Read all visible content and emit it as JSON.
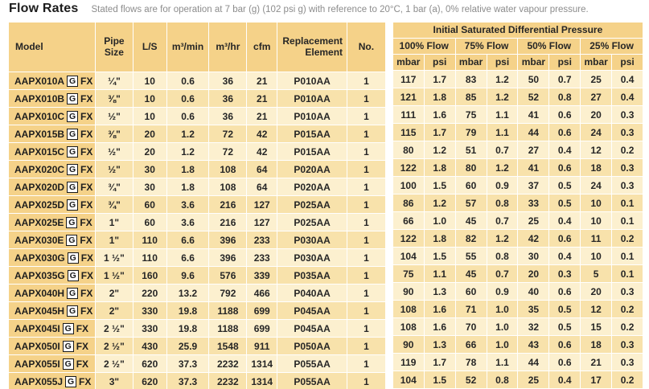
{
  "page": {
    "title": "Flow Rates",
    "subtitle": "Stated flows are for operation at 7 bar (g) (102 psi g) with reference to 20°C, 1 bar (a), 0% relative water vapour pressure."
  },
  "colors": {
    "header_bg": "#f5d289",
    "row_light_bg": "#fcf0cf",
    "row_dark_bg": "#f8e2ab",
    "grid_line": "#ffffff",
    "badge_border": "#1a1a1a",
    "text": "#262626",
    "subtitle_text": "#8c8c8c"
  },
  "table": {
    "columns": {
      "model": "Model",
      "pipe": "Pipe Size",
      "ls": "L/S",
      "m3min": "m³/min",
      "m3hr": "m³/hr",
      "cfm": "cfm",
      "element": "Replacement Element",
      "no": "No."
    },
    "pressure_header": "Initial Saturated Differential Pressure",
    "flow_groups": [
      "100% Flow",
      "75% Flow",
      "50% Flow",
      "25% Flow"
    ],
    "units": [
      "mbar",
      "psi"
    ],
    "rows": [
      {
        "model": "AAPX010A",
        "badge": "G",
        "suffix": "FX",
        "pipe": "¼\"",
        "ls": "10",
        "m3min": "0.6",
        "m3hr": "36",
        "cfm": "21",
        "element": "P010AA",
        "no": "1",
        "p": [
          "117",
          "1.7",
          "83",
          "1.2",
          "50",
          "0.7",
          "25",
          "0.4"
        ]
      },
      {
        "model": "AAPX010B",
        "badge": "G",
        "suffix": "FX",
        "pipe": "⅜\"",
        "ls": "10",
        "m3min": "0.6",
        "m3hr": "36",
        "cfm": "21",
        "element": "P010AA",
        "no": "1",
        "p": [
          "121",
          "1.8",
          "85",
          "1.2",
          "52",
          "0.8",
          "27",
          "0.4"
        ]
      },
      {
        "model": "AAPX010C",
        "badge": "G",
        "suffix": "FX",
        "pipe": "½\"",
        "ls": "10",
        "m3min": "0.6",
        "m3hr": "36",
        "cfm": "21",
        "element": "P010AA",
        "no": "1",
        "p": [
          "111",
          "1.6",
          "75",
          "1.1",
          "41",
          "0.6",
          "20",
          "0.3"
        ]
      },
      {
        "model": "AAPX015B",
        "badge": "G",
        "suffix": "FX",
        "pipe": "⅜\"",
        "ls": "20",
        "m3min": "1.2",
        "m3hr": "72",
        "cfm": "42",
        "element": "P015AA",
        "no": "1",
        "p": [
          "115",
          "1.7",
          "79",
          "1.1",
          "44",
          "0.6",
          "24",
          "0.3"
        ]
      },
      {
        "model": "AAPX015C",
        "badge": "G",
        "suffix": "FX",
        "pipe": "½\"",
        "ls": "20",
        "m3min": "1.2",
        "m3hr": "72",
        "cfm": "42",
        "element": "P015AA",
        "no": "1",
        "p": [
          "80",
          "1.2",
          "51",
          "0.7",
          "27",
          "0.4",
          "12",
          "0.2"
        ]
      },
      {
        "model": "AAPX020C",
        "badge": "G",
        "suffix": "FX",
        "pipe": "½\"",
        "ls": "30",
        "m3min": "1.8",
        "m3hr": "108",
        "cfm": "64",
        "element": "P020AA",
        "no": "1",
        "p": [
          "122",
          "1.8",
          "80",
          "1.2",
          "41",
          "0.6",
          "18",
          "0.3"
        ]
      },
      {
        "model": "AAPX020D",
        "badge": "G",
        "suffix": "FX",
        "pipe": "¾\"",
        "ls": "30",
        "m3min": "1.8",
        "m3hr": "108",
        "cfm": "64",
        "element": "P020AA",
        "no": "1",
        "p": [
          "100",
          "1.5",
          "60",
          "0.9",
          "37",
          "0.5",
          "24",
          "0.3"
        ]
      },
      {
        "model": "AAPX025D",
        "badge": "G",
        "suffix": "FX",
        "pipe": "¾\"",
        "ls": "60",
        "m3min": "3.6",
        "m3hr": "216",
        "cfm": "127",
        "element": "P025AA",
        "no": "1",
        "p": [
          "86",
          "1.2",
          "57",
          "0.8",
          "33",
          "0.5",
          "10",
          "0.1"
        ]
      },
      {
        "model": "AAPX025E",
        "badge": "G",
        "suffix": "FX",
        "pipe": "1\"",
        "ls": "60",
        "m3min": "3.6",
        "m3hr": "216",
        "cfm": "127",
        "element": "P025AA",
        "no": "1",
        "p": [
          "66",
          "1.0",
          "45",
          "0.7",
          "25",
          "0.4",
          "10",
          "0.1"
        ]
      },
      {
        "model": "AAPX030E",
        "badge": "G",
        "suffix": "FX",
        "pipe": "1\"",
        "ls": "110",
        "m3min": "6.6",
        "m3hr": "396",
        "cfm": "233",
        "element": "P030AA",
        "no": "1",
        "p": [
          "122",
          "1.8",
          "82",
          "1.2",
          "42",
          "0.6",
          "11",
          "0.2"
        ]
      },
      {
        "model": "AAPX030G",
        "badge": "G",
        "suffix": "FX",
        "pipe": "1 ½\"",
        "ls": "110",
        "m3min": "6.6",
        "m3hr": "396",
        "cfm": "233",
        "element": "P030AA",
        "no": "1",
        "p": [
          "104",
          "1.5",
          "55",
          "0.8",
          "30",
          "0.4",
          "10",
          "0.1"
        ]
      },
      {
        "model": "AAPX035G",
        "badge": "G",
        "suffix": "FX",
        "pipe": "1 ½\"",
        "ls": "160",
        "m3min": "9.6",
        "m3hr": "576",
        "cfm": "339",
        "element": "P035AA",
        "no": "1",
        "p": [
          "75",
          "1.1",
          "45",
          "0.7",
          "20",
          "0.3",
          "5",
          "0.1"
        ]
      },
      {
        "model": "AAPX040H",
        "badge": "G",
        "suffix": "FX",
        "pipe": "2\"",
        "ls": "220",
        "m3min": "13.2",
        "m3hr": "792",
        "cfm": "466",
        "element": "P040AA",
        "no": "1",
        "p": [
          "90",
          "1.3",
          "60",
          "0.9",
          "40",
          "0.6",
          "20",
          "0.3"
        ]
      },
      {
        "model": "AAPX045H",
        "badge": "G",
        "suffix": "FX",
        "pipe": "2\"",
        "ls": "330",
        "m3min": "19.8",
        "m3hr": "1188",
        "cfm": "699",
        "element": "P045AA",
        "no": "1",
        "p": [
          "108",
          "1.6",
          "71",
          "1.0",
          "35",
          "0.5",
          "12",
          "0.2"
        ]
      },
      {
        "model": "AAPX045I",
        "badge": "G",
        "suffix": "FX",
        "pipe": "2 ½\"",
        "ls": "330",
        "m3min": "19.8",
        "m3hr": "1188",
        "cfm": "699",
        "element": "P045AA",
        "no": "1",
        "p": [
          "108",
          "1.6",
          "70",
          "1.0",
          "32",
          "0.5",
          "15",
          "0.2"
        ]
      },
      {
        "model": "AAPX050I",
        "badge": "G",
        "suffix": "FX",
        "pipe": "2 ½\"",
        "ls": "430",
        "m3min": "25.9",
        "m3hr": "1548",
        "cfm": "911",
        "element": "P050AA",
        "no": "1",
        "p": [
          "90",
          "1.3",
          "66",
          "1.0",
          "43",
          "0.6",
          "18",
          "0.3"
        ]
      },
      {
        "model": "AAPX055I",
        "badge": "G",
        "suffix": "FX",
        "pipe": "2 ½\"",
        "ls": "620",
        "m3min": "37.3",
        "m3hr": "2232",
        "cfm": "1314",
        "element": "P055AA",
        "no": "1",
        "p": [
          "119",
          "1.7",
          "78",
          "1.1",
          "44",
          "0.6",
          "21",
          "0.3"
        ]
      },
      {
        "model": "AAPX055J",
        "badge": "G",
        "suffix": "FX",
        "pipe": "3\"",
        "ls": "620",
        "m3min": "37.3",
        "m3hr": "2232",
        "cfm": "1314",
        "element": "P055AA",
        "no": "1",
        "p": [
          "104",
          "1.5",
          "52",
          "0.8",
          "25",
          "0.4",
          "17",
          "0.2"
        ]
      }
    ]
  }
}
